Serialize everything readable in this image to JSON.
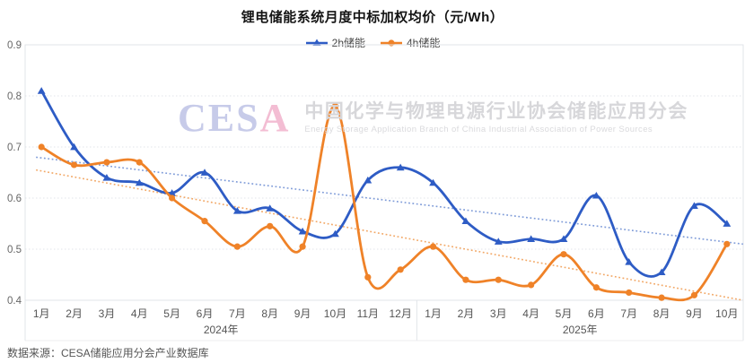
{
  "chart_data": {
    "type": "line",
    "title": "锂电储能系统月度中标加权均价（元/Wh）",
    "ylim": [
      0.4,
      0.9
    ],
    "yticks": [
      0.4,
      0.5,
      0.6,
      0.7,
      0.8,
      0.9
    ],
    "grid": "horizontal-dotted",
    "legend_position": "top-center",
    "categories": [
      "1月",
      "2月",
      "3月",
      "4月",
      "5月",
      "6月",
      "7月",
      "8月",
      "9月",
      "10月",
      "11月",
      "12月",
      "1月",
      "2月",
      "3月",
      "4月",
      "5月",
      "6月",
      "7月",
      "8月",
      "9月",
      "10月"
    ],
    "year_groups": [
      {
        "label": "2024年",
        "count": 12
      },
      {
        "label": "2025年",
        "count": 10
      }
    ],
    "series": [
      {
        "name": "2h储能",
        "color": "#2e5cc5",
        "marker": "triangle",
        "values": [
          0.81,
          0.7,
          0.64,
          0.63,
          0.61,
          0.65,
          0.575,
          0.58,
          0.535,
          0.53,
          0.635,
          0.66,
          0.63,
          0.555,
          0.515,
          0.52,
          0.52,
          0.605,
          0.475,
          0.455,
          0.585,
          0.55
        ]
      },
      {
        "name": "4h储能",
        "color": "#ef8228",
        "marker": "circle",
        "values": [
          0.7,
          0.665,
          0.67,
          0.67,
          0.6,
          0.555,
          0.505,
          0.545,
          0.505,
          0.78,
          0.445,
          0.46,
          0.505,
          0.44,
          0.44,
          0.43,
          0.49,
          0.425,
          0.415,
          0.405,
          0.41,
          0.51
        ]
      }
    ],
    "trendlines": [
      {
        "series": "2h储能",
        "color": "#7e9bd8",
        "start": 0.68,
        "end": 0.51
      },
      {
        "series": "4h储能",
        "color": "#f2a765",
        "start": 0.655,
        "end": 0.4
      }
    ]
  },
  "watermark": {
    "cesa_main": "CES",
    "cesa_accent": "A",
    "zh": "中国化学与物理电源行业协会储能应用分会",
    "en": "Energy Storage Application Branch of China Industrial Association of Power Sources"
  },
  "footer": {
    "source": "数据来源：CESA储能应用分会产业数据库"
  },
  "colors": {
    "grid": "#e1e4e9",
    "axis_text": "#666666",
    "band_text": "#555555"
  }
}
